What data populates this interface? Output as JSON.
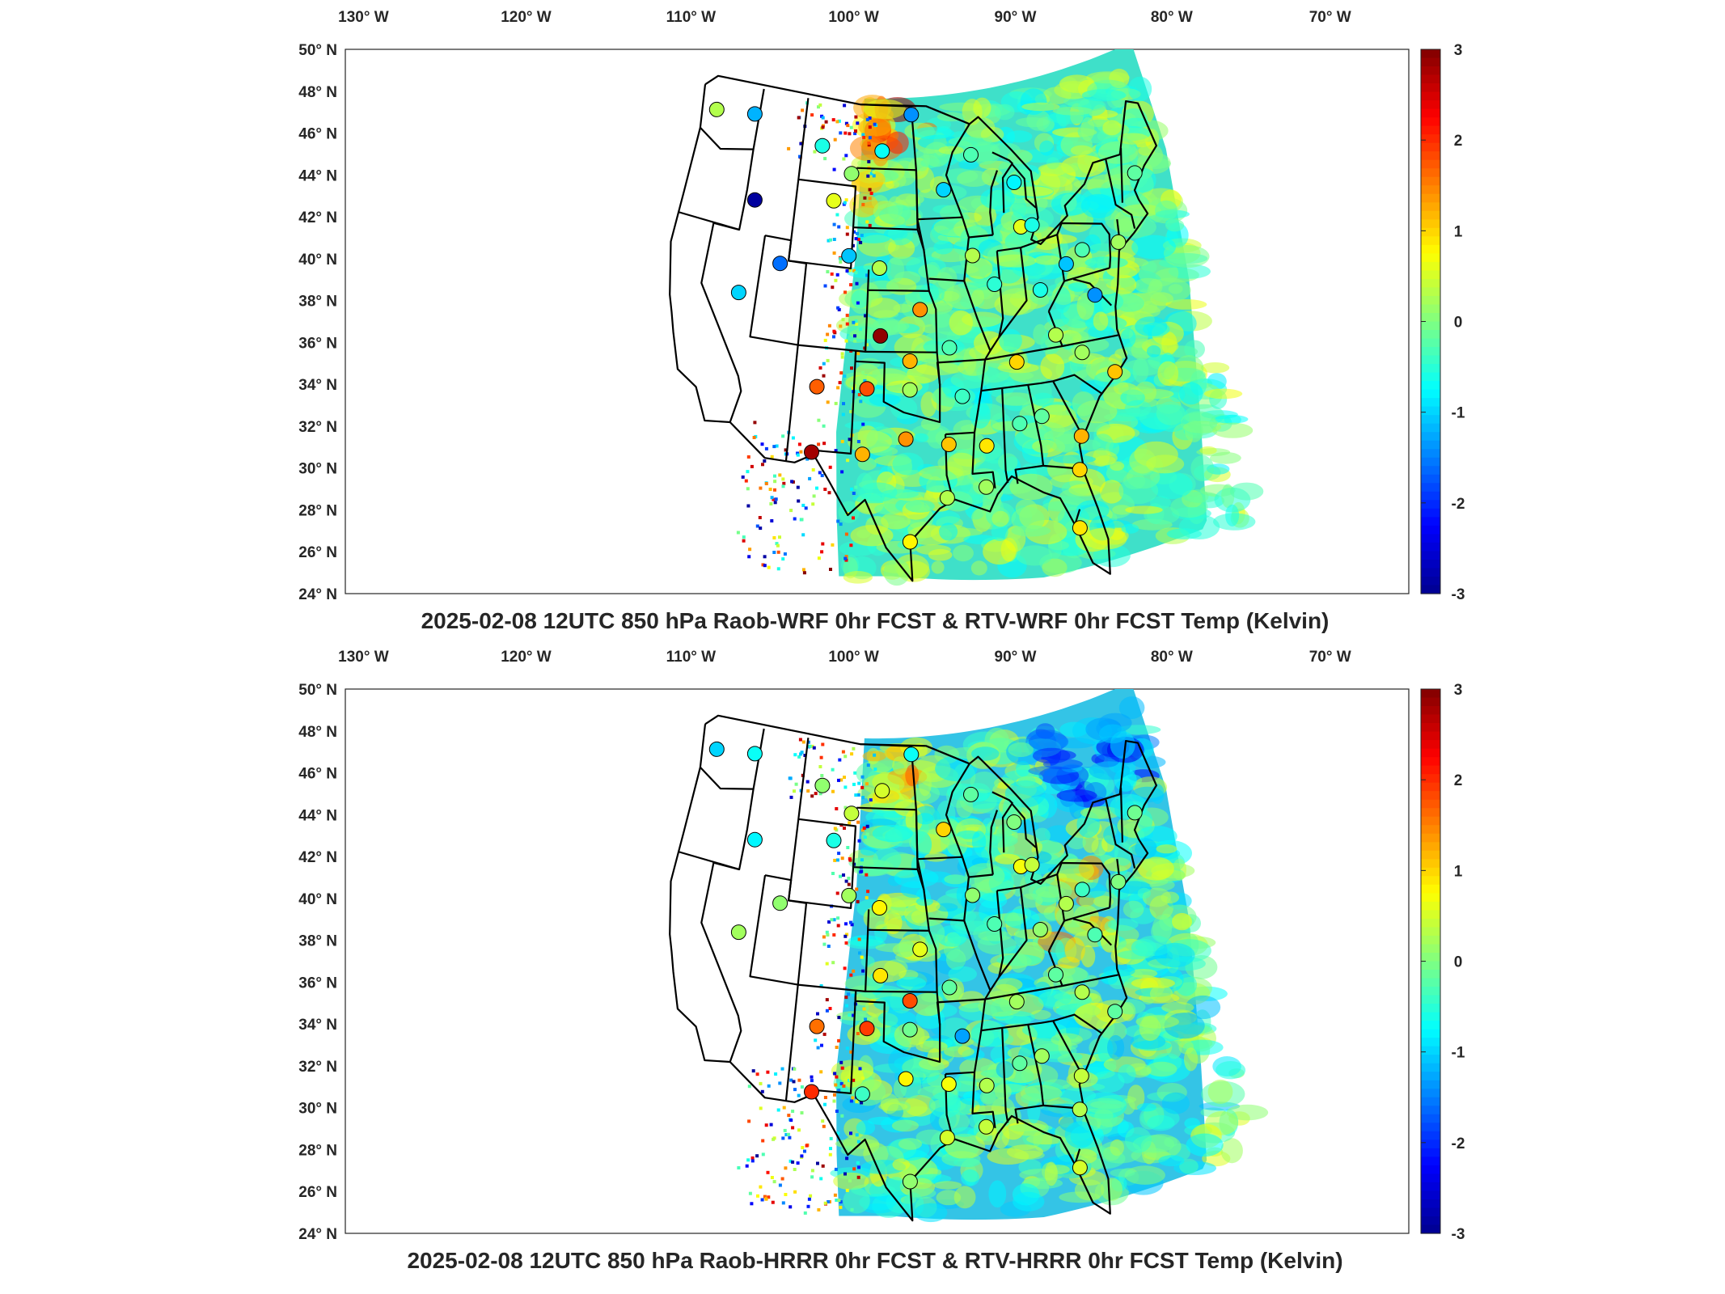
{
  "panels": [
    {
      "title": "2025-02-08 12UTC 850 hPa Raob-WRF 0hr FCST & RTV-WRF 0hr FCST Temp (Kelvin)",
      "colorbar_ticks": [
        "3",
        "2",
        "1",
        "0",
        "-1",
        "-2",
        "-3"
      ],
      "lon_labels": [
        "130° W",
        "120° W",
        "110° W",
        "100° W",
        "90° W",
        "80° W",
        "70° W"
      ],
      "lat_labels": [
        "50° N",
        "48° N",
        "46° N",
        "44° N",
        "42° N",
        "40° N",
        "38° N",
        "36° N",
        "34° N",
        "32° N",
        "30° N",
        "28° N",
        "26° N",
        "24° N"
      ],
      "raob_stations": [
        {
          "lon": -122.5,
          "lat": 47.4,
          "value": 0.3
        },
        {
          "lon": -117.6,
          "lat": 47.7,
          "value": -1.2
        },
        {
          "lon": -108.5,
          "lat": 46.8,
          "value": -0.6
        },
        {
          "lon": -104.6,
          "lat": 45.6,
          "value": 0.1
        },
        {
          "lon": -100.9,
          "lat": 46.8,
          "value": -0.7
        },
        {
          "lon": -93.3,
          "lat": 44.9,
          "value": -1.0
        },
        {
          "lon": -97.2,
          "lat": 48.6,
          "value": -1.4
        },
        {
          "lon": -106.5,
          "lat": 44.2,
          "value": 0.6
        },
        {
          "lon": -115.8,
          "lat": 43.6,
          "value": -2.9
        },
        {
          "lon": -111.9,
          "lat": 40.8,
          "value": -1.6
        },
        {
          "lon": -104.3,
          "lat": 41.6,
          "value": -1.1
        },
        {
          "lon": -100.8,
          "lat": 41.1,
          "value": 0.3
        },
        {
          "lon": -96.3,
          "lat": 39.1,
          "value": 1.4
        },
        {
          "lon": -100.5,
          "lat": 37.8,
          "value": 2.9
        },
        {
          "lon": -115.9,
          "lat": 39.0,
          "value": -1.0
        },
        {
          "lon": -106.7,
          "lat": 35.1,
          "value": 1.7
        },
        {
          "lon": -101.7,
          "lat": 35.2,
          "value": 1.8
        },
        {
          "lon": -97.4,
          "lat": 36.6,
          "value": 1.2
        },
        {
          "lon": -106.7,
          "lat": 31.9,
          "value": 2.8
        },
        {
          "lon": -101.9,
          "lat": 32.0,
          "value": 1.2
        },
        {
          "lon": -97.8,
          "lat": 32.8,
          "value": 1.4
        },
        {
          "lon": -97.4,
          "lat": 35.2,
          "value": 0.2
        },
        {
          "lon": -92.2,
          "lat": 34.8,
          "value": -0.4
        },
        {
          "lon": -93.3,
          "lat": 37.2,
          "value": -0.3
        },
        {
          "lon": -90.3,
          "lat": 41.6,
          "value": 0.3
        },
        {
          "lon": -88.1,
          "lat": 40.1,
          "value": -0.5
        },
        {
          "lon": -84.5,
          "lat": 42.7,
          "value": 0.6
        },
        {
          "lon": -84.7,
          "lat": 44.9,
          "value": -0.8
        },
        {
          "lon": -89.7,
          "lat": 46.5,
          "value": -0.3
        },
        {
          "lon": -93.7,
          "lat": 32.5,
          "value": 1.1
        },
        {
          "lon": -90.1,
          "lat": 32.3,
          "value": 0.9
        },
        {
          "lon": -86.8,
          "lat": 33.2,
          "value": -0.3
        },
        {
          "lon": -84.6,
          "lat": 33.4,
          "value": -0.2
        },
        {
          "lon": -81.1,
          "lat": 32.1,
          "value": 1.2
        },
        {
          "lon": -80.0,
          "lat": 40.5,
          "value": -1.1
        },
        {
          "lon": -83.2,
          "lat": 39.5,
          "value": -0.6
        },
        {
          "lon": -86.5,
          "lat": 36.2,
          "value": 1.0
        },
        {
          "lon": -82.2,
          "lat": 37.2,
          "value": 0.3
        },
        {
          "lon": -79.8,
          "lat": 36.1,
          "value": 0.2
        },
        {
          "lon": -77.5,
          "lat": 38.7,
          "value": -1.4
        },
        {
          "lon": -73.9,
          "lat": 40.9,
          "value": 0.2
        },
        {
          "lon": -70.3,
          "lat": 43.9,
          "value": -0.2
        },
        {
          "lon": -83.2,
          "lat": 42.7,
          "value": -0.6
        },
        {
          "lon": -90.4,
          "lat": 30.3,
          "value": 0.2
        },
        {
          "lon": -94.0,
          "lat": 29.9,
          "value": 0.3
        },
        {
          "lon": -97.4,
          "lat": 27.8,
          "value": 0.8
        },
        {
          "lon": -82.4,
          "lat": 27.7,
          "value": 0.9
        },
        {
          "lon": -81.7,
          "lat": 30.5,
          "value": 1.0
        },
        {
          "lon": -76.9,
          "lat": 34.8,
          "value": 1.1
        },
        {
          "lon": -78.0,
          "lat": 41.0,
          "value": -0.3
        }
      ]
    },
    {
      "title": "2025-02-08 12UTC 850 hPa Raob-HRRR 0hr FCST & RTV-HRRR 0hr FCST Temp (Kelvin)",
      "colorbar_ticks": [
        "3",
        "2",
        "1",
        "0",
        "-1",
        "-2",
        "-3"
      ],
      "lon_labels": [
        "130° W",
        "120° W",
        "110° W",
        "100° W",
        "90° W",
        "80° W",
        "70° W"
      ],
      "lat_labels": [
        "50° N",
        "48° N",
        "46° N",
        "44° N",
        "42° N",
        "40° N",
        "38° N",
        "36° N",
        "34° N",
        "32° N",
        "30° N",
        "28° N",
        "26° N",
        "24° N"
      ],
      "raob_stations": [
        {
          "lon": -122.5,
          "lat": 47.4,
          "value": -1.0
        },
        {
          "lon": -117.6,
          "lat": 47.7,
          "value": -0.7
        },
        {
          "lon": -108.5,
          "lat": 46.8,
          "value": 0.1
        },
        {
          "lon": -104.6,
          "lat": 45.6,
          "value": 0.4
        },
        {
          "lon": -100.9,
          "lat": 46.8,
          "value": 0.5
        },
        {
          "lon": -93.3,
          "lat": 44.9,
          "value": 1.0
        },
        {
          "lon": -97.2,
          "lat": 48.6,
          "value": -0.7
        },
        {
          "lon": -106.5,
          "lat": 44.2,
          "value": -0.6
        },
        {
          "lon": -115.8,
          "lat": 43.6,
          "value": -0.8
        },
        {
          "lon": -111.9,
          "lat": 40.8,
          "value": 0.1
        },
        {
          "lon": -104.3,
          "lat": 41.6,
          "value": 0.2
        },
        {
          "lon": -100.8,
          "lat": 41.1,
          "value": 0.8
        },
        {
          "lon": -96.3,
          "lat": 39.1,
          "value": 0.6
        },
        {
          "lon": -100.5,
          "lat": 37.8,
          "value": 0.9
        },
        {
          "lon": -115.9,
          "lat": 39.0,
          "value": 0.2
        },
        {
          "lon": -106.7,
          "lat": 35.1,
          "value": 1.6
        },
        {
          "lon": -101.7,
          "lat": 35.2,
          "value": 1.9
        },
        {
          "lon": -97.4,
          "lat": 36.6,
          "value": 1.8
        },
        {
          "lon": -106.7,
          "lat": 31.9,
          "value": 2.0
        },
        {
          "lon": -101.9,
          "lat": 32.0,
          "value": -0.4
        },
        {
          "lon": -97.8,
          "lat": 32.8,
          "value": 0.8
        },
        {
          "lon": -97.4,
          "lat": 35.2,
          "value": -0.1
        },
        {
          "lon": -92.2,
          "lat": 34.8,
          "value": -1.3
        },
        {
          "lon": -93.3,
          "lat": 37.2,
          "value": -0.2
        },
        {
          "lon": -90.3,
          "lat": 41.6,
          "value": 0.1
        },
        {
          "lon": -88.1,
          "lat": 40.1,
          "value": -0.3
        },
        {
          "lon": -84.5,
          "lat": 42.7,
          "value": 0.7
        },
        {
          "lon": -84.7,
          "lat": 44.9,
          "value": 0.0
        },
        {
          "lon": -89.7,
          "lat": 46.5,
          "value": -0.2
        },
        {
          "lon": -93.7,
          "lat": 32.5,
          "value": 0.7
        },
        {
          "lon": -90.1,
          "lat": 32.3,
          "value": 0.3
        },
        {
          "lon": -86.8,
          "lat": 33.2,
          "value": -0.2
        },
        {
          "lon": -84.6,
          "lat": 33.4,
          "value": 0.2
        },
        {
          "lon": -81.1,
          "lat": 32.1,
          "value": 0.4
        },
        {
          "lon": -80.0,
          "lat": 40.5,
          "value": 0.3
        },
        {
          "lon": -83.2,
          "lat": 39.5,
          "value": 0.1
        },
        {
          "lon": -86.5,
          "lat": 36.2,
          "value": 0.2
        },
        {
          "lon": -82.2,
          "lat": 37.2,
          "value": -0.2
        },
        {
          "lon": -79.8,
          "lat": 36.1,
          "value": 0.3
        },
        {
          "lon": -77.5,
          "lat": 38.7,
          "value": -0.3
        },
        {
          "lon": -73.9,
          "lat": 40.9,
          "value": 0.0
        },
        {
          "lon": -70.3,
          "lat": 43.9,
          "value": -0.1
        },
        {
          "lon": -83.2,
          "lat": 42.7,
          "value": 0.4
        },
        {
          "lon": -90.4,
          "lat": 30.3,
          "value": 0.4
        },
        {
          "lon": -94.0,
          "lat": 29.9,
          "value": 0.5
        },
        {
          "lon": -97.4,
          "lat": 27.8,
          "value": 0.1
        },
        {
          "lon": -82.4,
          "lat": 27.7,
          "value": 0.5
        },
        {
          "lon": -81.7,
          "lat": 30.5,
          "value": 0.3
        },
        {
          "lon": -76.9,
          "lat": 34.8,
          "value": -0.2
        },
        {
          "lon": -78.0,
          "lat": 41.0,
          "value": -0.4
        }
      ]
    }
  ],
  "colormap": [
    "#00008f",
    "#0000ff",
    "#0080ff",
    "#00ffff",
    "#80ff80",
    "#ffff00",
    "#ff8000",
    "#ff0000",
    "#800000"
  ],
  "colorbar_range": [
    -3,
    3
  ],
  "map_extent": {
    "lon": [
      -134,
      -65
    ],
    "lat": [
      24,
      50
    ]
  }
}
